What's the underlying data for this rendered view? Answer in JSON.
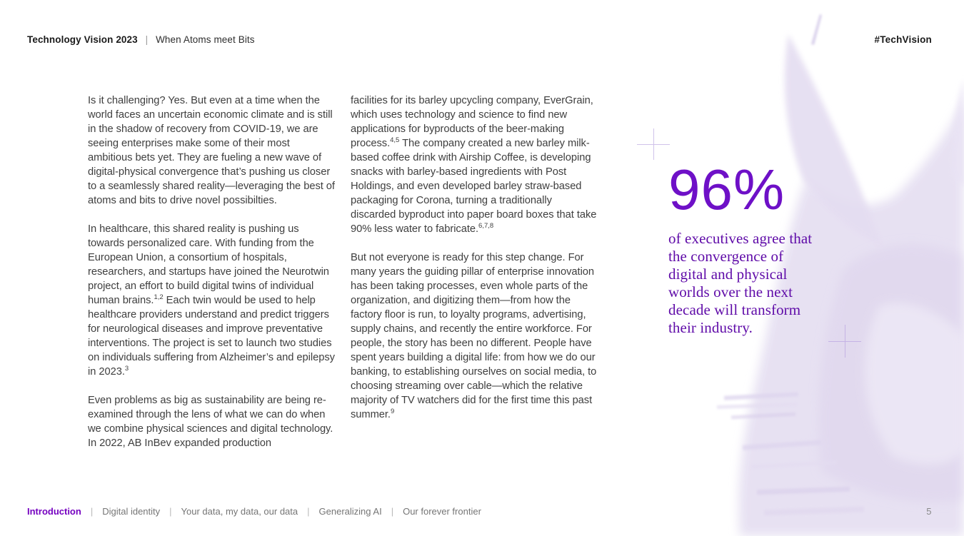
{
  "header": {
    "title": "Technology Vision 2023",
    "separator": "|",
    "subtitle": "When Atoms meet Bits",
    "hashtag": "#TechVision"
  },
  "columns": {
    "col1": [
      {
        "segments": [
          {
            "text": "Is it challenging? Yes. But even at a time when the world faces an uncertain economic climate and is still in the shadow of recovery from COVID-19, we are seeing enterprises make some of their most ambitious bets yet. They are fueling a new wave of digital-physical convergence that’s pushing us closer to a seamlessly shared reality—leveraging the best of atoms and bits to drive novel possibilties."
          }
        ]
      },
      {
        "segments": [
          {
            "text": "In healthcare, this shared reality is pushing us towards personalized care. With funding from the European Union, a consortium of hospitals, researchers, and startups have joined the Neurotwin project, an effort to build digital twins of individual human brains."
          },
          {
            "text": "1,2",
            "sup": true
          },
          {
            "text": " Each twin would be used to help healthcare providers understand and predict triggers for neurological diseases and improve preventative interventions. The project is set to launch two studies on individuals suffering from Alzheimer’s and epilepsy in 2023."
          },
          {
            "text": "3",
            "sup": true
          }
        ]
      },
      {
        "segments": [
          {
            "text": "Even problems as big as sustainability are being re-examined through the lens of what we can do when we combine physical sciences and digital technology. In 2022, AB InBev expanded production"
          }
        ]
      }
    ],
    "col2": [
      {
        "segments": [
          {
            "text": "facilities for its barley upcycling company, EverGrain, which uses technology and science to find new applications for byproducts of the beer-making process."
          },
          {
            "text": "4,5",
            "sup": true
          },
          {
            "text": " The company created a new barley milk-based coffee drink with Airship Coffee, is developing snacks with barley-based ingredients with Post Holdings, and even developed barley straw-based packaging for Corona, turning a traditionally discarded byproduct into paper board boxes that take 90% less water to fabricate."
          },
          {
            "text": "6,7,8",
            "sup": true
          }
        ]
      },
      {
        "segments": [
          {
            "text": "But not everyone is ready for this step change. For many years the guiding pillar of enterprise innovation has been taking processes, even whole parts of the organization, and digitizing them—from how the factory floor is run, to loyalty programs, advertising, supply chains, and recently the entire workforce. For people, the story has been no different. People have spent years building a digital life: from how we do our banking, to establishing ourselves on social media, to choosing streaming over cable—which the relative majority of TV watchers did for the first time this past summer."
          },
          {
            "text": "9",
            "sup": true
          }
        ]
      }
    ]
  },
  "stat": {
    "value": "96%",
    "description": "of executives agree that the convergence of digital and physical worlds over the next decade will transform their industry."
  },
  "footer": {
    "separator": "|",
    "items": [
      {
        "label": "Introduction",
        "active": true
      },
      {
        "label": "Digital identity",
        "active": false
      },
      {
        "label": "Your data, my data, our data",
        "active": false
      },
      {
        "label": "Generalizing AI",
        "active": false
      },
      {
        "label": "Our forever frontier",
        "active": false
      }
    ],
    "page_number": "5"
  },
  "colors": {
    "accent_purple": "#7500c0",
    "stat_number_purple": "#6e10c7",
    "stat_text_purple": "#5f0ba8",
    "body_text": "#3e3e3e",
    "header_text": "#1a1a1a",
    "nav_inactive": "#757575",
    "divider_gray": "#b8b8b8",
    "page_number_gray": "#8a8a8a",
    "wash_lavender": "#e6e0f2",
    "wash_lavender_deep": "#ddd3ec",
    "crosshair_purple": "#c5b3e5"
  }
}
